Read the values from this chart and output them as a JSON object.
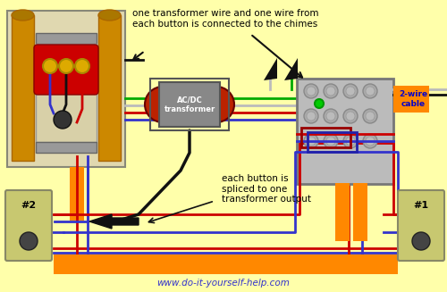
{
  "bg_color": "#FFFFAA",
  "title_text": "www.do-it-yourself-help.com",
  "annotation1": "one transformer wire and one wire from\neach button is connected to the chimes",
  "annotation2": "each button is\nspliced to one\ntransformer output",
  "label_2wire": "2-wire\ncable",
  "label_1": "#1",
  "label_2": "#2",
  "transformer_label": "AC/DC\ntransformer",
  "wire_red": "#CC0000",
  "wire_blue": "#3333CC",
  "wire_black": "#111111",
  "wire_green": "#00AA00",
  "wire_white": "#BBBBBB",
  "wire_orange": "#FF8800",
  "tube_color": "#CC8800",
  "tube_dark": "#AA6600",
  "chime_box_bg": "#E0D8B0",
  "chime_inner_bg": "#D8D0A8",
  "chime_red": "#CC0000",
  "chime_gold": "#DDAA00",
  "junction_color": "#BBBBBB",
  "junction_edge": "#777777",
  "transformer_gray": "#888888",
  "transformer_red": "#BB2200",
  "button_color": "#C8C870",
  "button_edge": "#888866",
  "orange_label_bg": "#FF8800",
  "orange_label_text": "#0000CC"
}
